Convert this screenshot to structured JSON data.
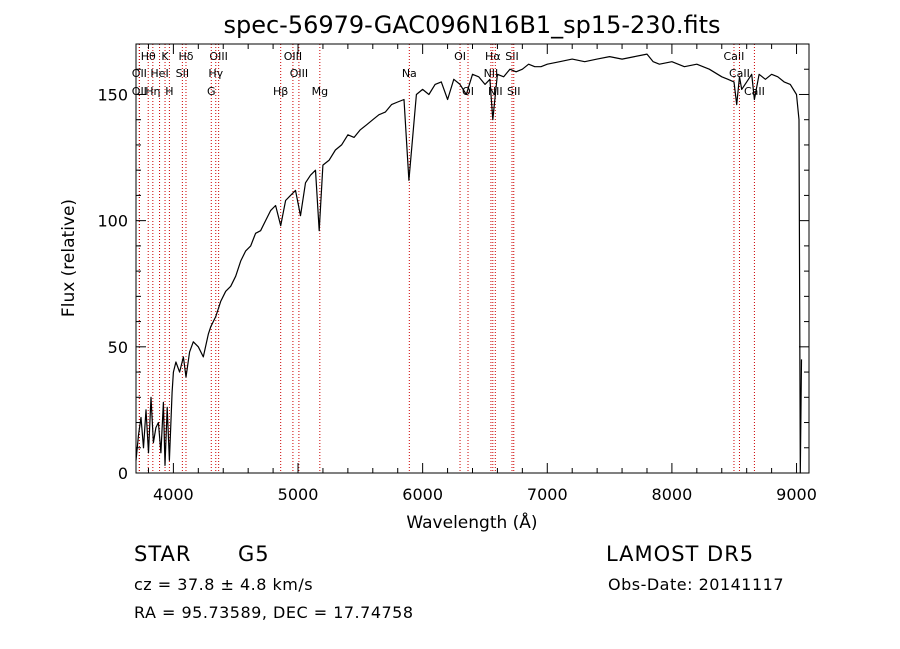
{
  "chart_data": {
    "type": "line",
    "title": "spec-56979-GAC096N16B1_sp15-230.fits",
    "xlabel": "Wavelength (Å)",
    "ylabel": "Flux (relative)",
    "xlim": [
      3700,
      9100
    ],
    "ylim": [
      0,
      170
    ],
    "xticks": [
      4000,
      5000,
      6000,
      7000,
      8000,
      9000
    ],
    "yticks": [
      0,
      50,
      100,
      150
    ],
    "grid": false,
    "line_color": "#000000",
    "marker_color": "#cc0000",
    "series": [
      {
        "x": [
          3700,
          3720,
          3740,
          3760,
          3780,
          3800,
          3820,
          3840,
          3860,
          3880,
          3900,
          3920,
          3933,
          3950,
          3968,
          3990,
          4000,
          4020,
          4050,
          4080,
          4101,
          4130,
          4160,
          4200,
          4240,
          4280,
          4300,
          4340,
          4380,
          4420,
          4460,
          4500,
          4540,
          4580,
          4620,
          4660,
          4700,
          4740,
          4780,
          4820,
          4861,
          4900,
          4940,
          4980,
          5020,
          5060,
          5100,
          5140,
          5170,
          5200,
          5250,
          5300,
          5350,
          5400,
          5450,
          5500,
          5550,
          5600,
          5650,
          5700,
          5750,
          5800,
          5850,
          5890,
          5950,
          6000,
          6050,
          6100,
          6150,
          6200,
          6250,
          6300,
          6350,
          6400,
          6450,
          6500,
          6540,
          6563,
          6600,
          6650,
          6700,
          6750,
          6800,
          6850,
          6900,
          6950,
          7000,
          7100,
          7200,
          7300,
          7400,
          7500,
          7600,
          7700,
          7800,
          7850,
          7900,
          8000,
          8100,
          8200,
          8300,
          8400,
          8450,
          8498,
          8520,
          8542,
          8560,
          8600,
          8640,
          8662,
          8700,
          8750,
          8800,
          8850,
          8900,
          8950,
          9000,
          9020,
          9030,
          9040
        ],
        "y": [
          5,
          15,
          22,
          10,
          25,
          8,
          30,
          12,
          18,
          20,
          8,
          28,
          3,
          26,
          5,
          32,
          40,
          44,
          40,
          46,
          38,
          48,
          52,
          50,
          46,
          55,
          58,
          62,
          68,
          72,
          74,
          78,
          84,
          88,
          90,
          95,
          96,
          100,
          104,
          106,
          98,
          108,
          110,
          112,
          102,
          115,
          118,
          120,
          96,
          122,
          124,
          128,
          130,
          134,
          133,
          136,
          138,
          140,
          142,
          143,
          146,
          147,
          148,
          116,
          150,
          152,
          150,
          154,
          155,
          148,
          156,
          154,
          150,
          158,
          157,
          154,
          156,
          140,
          158,
          157,
          160,
          159,
          160,
          162,
          161,
          161,
          162,
          163,
          164,
          163,
          164,
          165,
          164,
          165,
          166,
          163,
          162,
          163,
          161,
          162,
          160,
          157,
          156,
          155,
          146,
          157,
          152,
          155,
          158,
          148,
          158,
          156,
          158,
          157,
          155,
          154,
          150,
          140,
          0,
          45
        ]
      }
    ],
    "spectral_lines": [
      {
        "name": "OII",
        "wavelength": 3727,
        "row": 2
      },
      {
        "name": "Hθ",
        "wavelength": 3798,
        "row": 1
      },
      {
        "name": "OII",
        "wavelength": 3727,
        "row": 3
      },
      {
        "name": "Hη",
        "wavelength": 3835,
        "row": 3
      },
      {
        "name": "HeI",
        "wavelength": 3889,
        "row": 2
      },
      {
        "name": "K",
        "wavelength": 3933,
        "row": 1
      },
      {
        "name": "H",
        "wavelength": 3968,
        "row": 3
      },
      {
        "name": "SII",
        "wavelength": 4072,
        "row": 2
      },
      {
        "name": "Hδ",
        "wavelength": 4101,
        "row": 1
      },
      {
        "name": "OIII",
        "wavelength": 4363,
        "row": 1
      },
      {
        "name": "Hγ",
        "wavelength": 4340,
        "row": 2
      },
      {
        "name": "G",
        "wavelength": 4304,
        "row": 3
      },
      {
        "name": "Hβ",
        "wavelength": 4861,
        "row": 3
      },
      {
        "name": "OIII",
        "wavelength": 4959,
        "row": 1
      },
      {
        "name": "OIII",
        "wavelength": 5007,
        "row": 2
      },
      {
        "name": "Mg",
        "wavelength": 5175,
        "row": 3
      },
      {
        "name": "Na",
        "wavelength": 5893,
        "row": 2
      },
      {
        "name": "OI",
        "wavelength": 6300,
        "row": 1
      },
      {
        "name": "OI",
        "wavelength": 6364,
        "row": 3
      },
      {
        "name": "Hα",
        "wavelength": 6563,
        "row": 1
      },
      {
        "name": "NII",
        "wavelength": 6548,
        "row": 2
      },
      {
        "name": "NII",
        "wavelength": 6583,
        "row": 3
      },
      {
        "name": "SII",
        "wavelength": 6717,
        "row": 1
      },
      {
        "name": "SII",
        "wavelength": 6731,
        "row": 3
      },
      {
        "name": "CaII",
        "wavelength": 8498,
        "row": 1
      },
      {
        "name": "CaII",
        "wavelength": 8542,
        "row": 2
      },
      {
        "name": "CaII",
        "wavelength": 8662,
        "row": 3
      }
    ]
  },
  "info": {
    "object_class": "STAR",
    "subclass": "G5",
    "survey": "LAMOST  DR5",
    "redshift": "cz = 37.8 ± 4.8 km/s",
    "obs_date": "Obs-Date: 20141117",
    "coords": "RA =  95.73589, DEC =  17.74758"
  }
}
